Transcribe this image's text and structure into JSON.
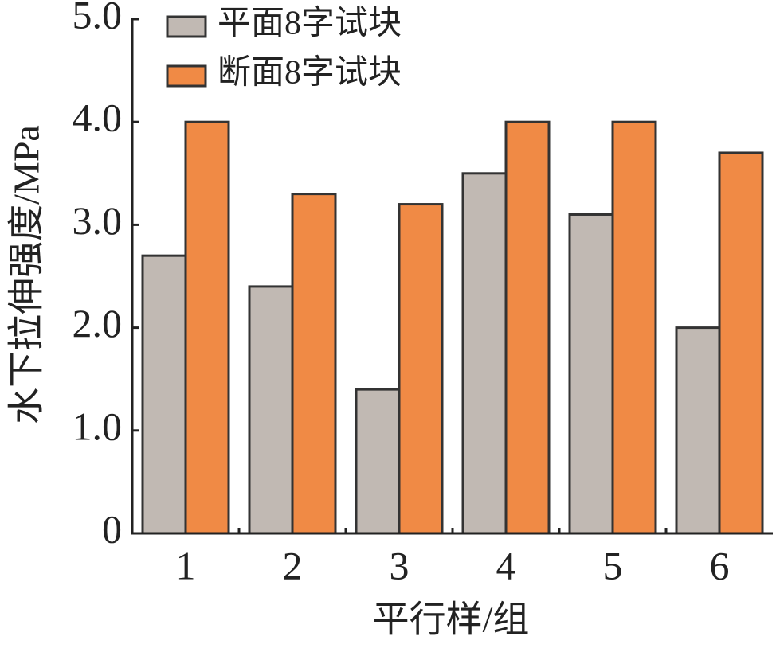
{
  "chart_data": {
    "type": "bar",
    "x_label": "平行样/组",
    "y_label": "水下拉伸强度/MPa",
    "categories": [
      "1",
      "2",
      "3",
      "4",
      "5",
      "6"
    ],
    "series": [
      {
        "name": "平面8字试块",
        "color": "#c1b9b3",
        "values": [
          2.7,
          2.4,
          1.4,
          3.5,
          3.1,
          2.0
        ]
      },
      {
        "name": "断面8字试块",
        "color": "#f08a45",
        "values": [
          4.0,
          3.3,
          3.2,
          4.0,
          4.0,
          3.7
        ]
      }
    ],
    "ylim": [
      0,
      5
    ],
    "yticks": [
      0,
      {
        "value": 1,
        "label": "1.0"
      },
      {
        "value": 2,
        "label": "2.0"
      },
      {
        "value": 3,
        "label": "3.0"
      },
      {
        "value": 4,
        "label": "4.0"
      },
      {
        "value": 5,
        "label": "5.0"
      }
    ],
    "legend": "upper-left",
    "grid": false
  }
}
